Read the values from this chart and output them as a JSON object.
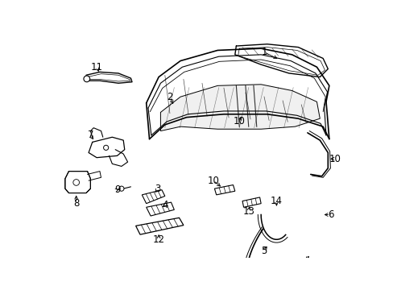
{
  "background_color": "#ffffff",
  "line_color": "#000000",
  "figsize": [
    4.89,
    3.6
  ],
  "dpi": 100,
  "font_size": 8.5
}
